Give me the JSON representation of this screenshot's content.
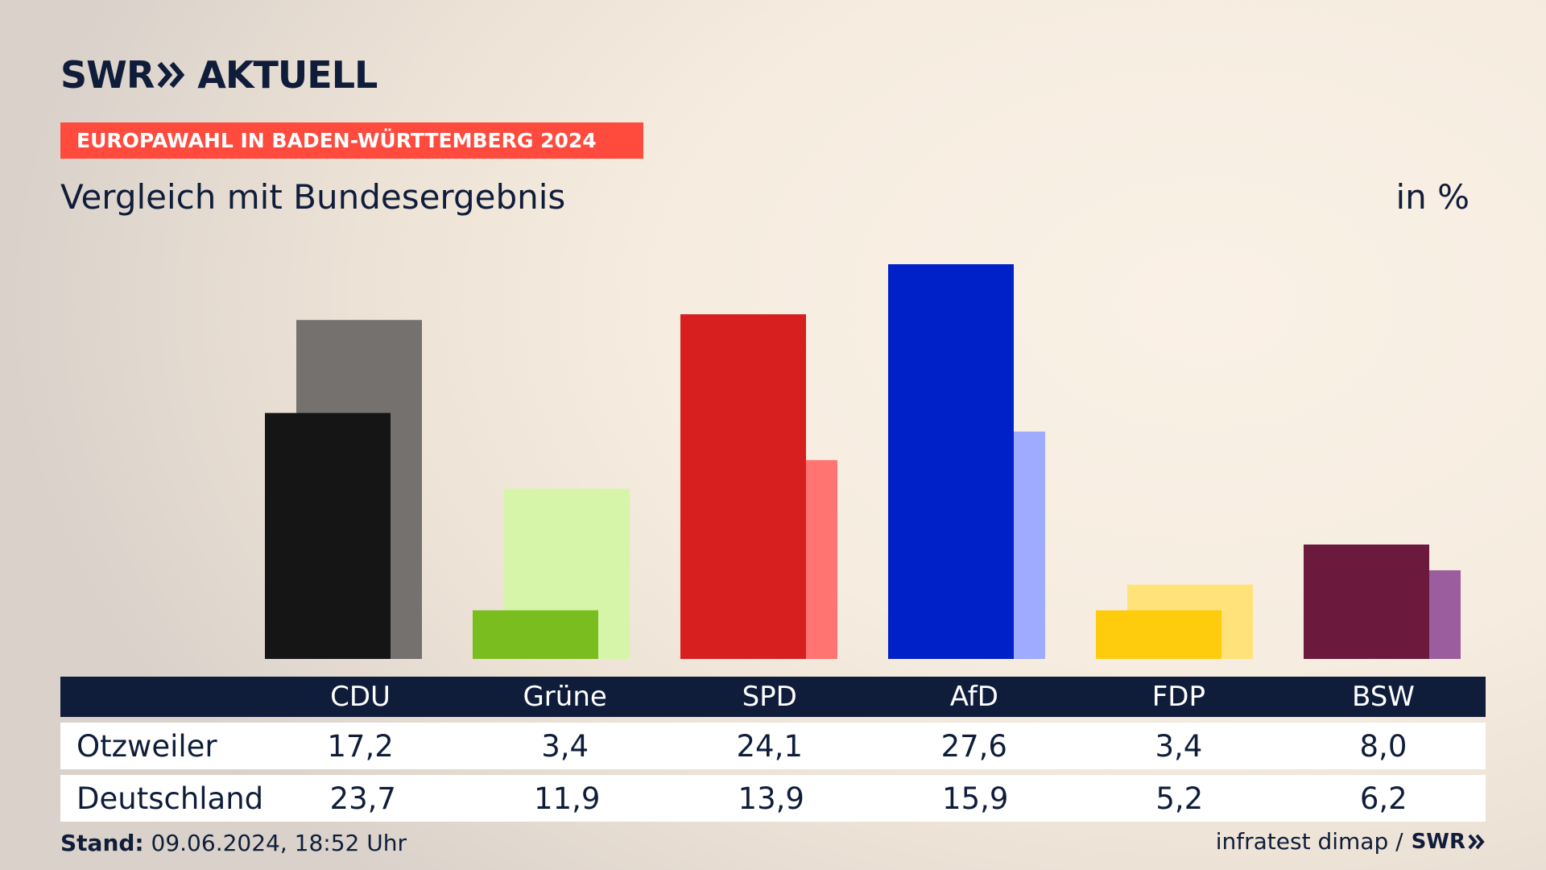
{
  "brand": {
    "swr": "SWR",
    "aktuell": "AKTUELL"
  },
  "kicker": "EUROPAWAHL IN BADEN-WÜRTTEMBERG 2024",
  "subtitle": "Vergleich mit Bundesergebnis",
  "unit": "in %",
  "chart_data": {
    "type": "bar",
    "categories": [
      "CDU",
      "Grüne",
      "SPD",
      "AfD",
      "FDP",
      "BSW"
    ],
    "series": [
      {
        "name": "Otzweiler",
        "values": [
          17.2,
          3.4,
          24.1,
          27.6,
          3.4,
          8.0
        ],
        "colors": [
          "#151515",
          "#79be1e",
          "#d71f1f",
          "#0021c7",
          "#ffcc0d",
          "#6b1a3e"
        ]
      },
      {
        "name": "Deutschland",
        "values": [
          23.7,
          11.9,
          13.9,
          15.9,
          5.2,
          6.2
        ],
        "colors": [
          "#74716f",
          "#d7f5a9",
          "#ff7471",
          "#9eabff",
          "#ffe37a",
          "#9b5d9d"
        ]
      }
    ],
    "ylim": [
      0,
      27.6
    ]
  },
  "table": {
    "headers": [
      "CDU",
      "Grüne",
      "SPD",
      "AfD",
      "FDP",
      "BSW"
    ],
    "rows": [
      {
        "label": "Otzweiler",
        "values": [
          "17,2",
          "3,4",
          "24,1",
          "27,6",
          "3,4",
          "8,0"
        ]
      },
      {
        "label": "Deutschland",
        "values": [
          "23,7",
          "11,9",
          "13,9",
          "15,9",
          "5,2",
          "6,2"
        ]
      }
    ]
  },
  "footer": {
    "stand_label": "Stand:",
    "stand_value": "09.06.2024, 18:52 Uhr",
    "source": "infratest dimap /",
    "swr_small": "SWR"
  },
  "colors": {
    "navy": "#0f1d3a",
    "kicker": "#ff4b3e"
  }
}
